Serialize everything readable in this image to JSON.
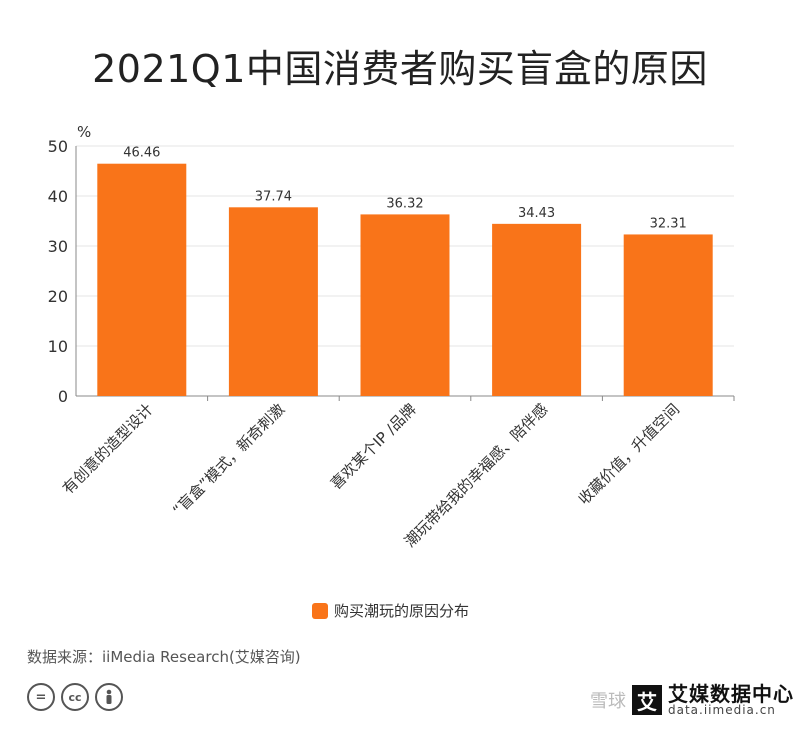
{
  "title": "2021Q1中国消费者购买盲盒的原因",
  "chart_data": {
    "type": "bar",
    "unit_label": "%",
    "ylim": [
      0,
      50
    ],
    "yticks": [
      0,
      10,
      20,
      30,
      40,
      50
    ],
    "categories": [
      "有创意的造型设计",
      "“盲盒”模式，新奇刺激",
      "喜欢某个IP /品牌",
      "潮玩带给我的幸福感、陪伴感",
      "收藏价值，升值空间"
    ],
    "series": [
      {
        "name": "购买潮玩的原因分布",
        "values": [
          46.46,
          37.74,
          36.32,
          34.43,
          32.31
        ],
        "color": "#F97419"
      }
    ],
    "legend_position": "bottom",
    "grid": true
  },
  "source": "数据来源：iiMedia Research(艾媒咨询)",
  "license_icons": [
    "equals-icon",
    "cc-icon",
    "person-icon"
  ],
  "watermark": {
    "xueqiu": "雪球",
    "brand_mark": "艾",
    "brand_name": "艾媒数据中心",
    "url": "data.iimedia.cn"
  }
}
